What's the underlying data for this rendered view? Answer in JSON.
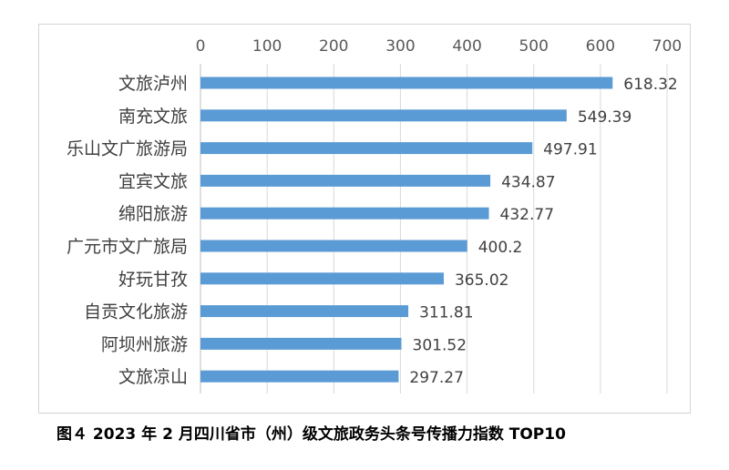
{
  "caption": "图４ 2023 年 2 月四川省市（州）级文旅政务头条号传播力指数 TOP10",
  "chart_data": {
    "type": "bar",
    "orientation": "horizontal",
    "categories": [
      "文旅泸州",
      "南充文旅",
      "乐山文广旅游局",
      "宜宾文旅",
      "绵阳旅游",
      "广元市文广旅局",
      "好玩甘孜",
      "自贡文化旅游",
      "阿坝州旅游",
      "文旅凉山"
    ],
    "values": [
      618.32,
      549.39,
      497.91,
      434.87,
      432.77,
      400.2,
      365.02,
      311.81,
      301.52,
      297.27
    ],
    "value_labels": [
      "618.32",
      "549.39",
      "497.91",
      "434.87",
      "432.77",
      "400.2",
      "365.02",
      "311.81",
      "301.52",
      "297.27"
    ],
    "xlim": [
      0,
      700
    ],
    "x_ticks": [
      0,
      100,
      200,
      300,
      400,
      500,
      600,
      700
    ],
    "x_axis_position": "top",
    "grid": true,
    "bar_color": "#5b9bd5"
  }
}
